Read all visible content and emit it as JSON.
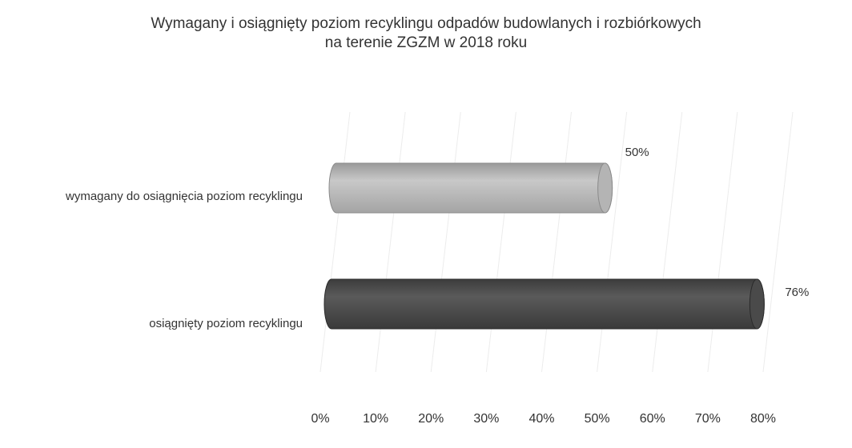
{
  "chart_data": {
    "type": "bar",
    "orientation": "horizontal",
    "title_lines": [
      "Wymagany i osiągnięty poziom recyklingu odpadów budowlanych i rozbiórkowych",
      "na terenie ZGZM w 2018 roku"
    ],
    "categories": [
      "wymagany do osiągnięcia poziom recyklingu",
      "osiągnięty poziom recyklingu"
    ],
    "values": [
      50,
      76
    ],
    "data_labels": [
      "50%",
      "76%"
    ],
    "colors": [
      "#b4b4b4",
      "#4a4a4a"
    ],
    "xlim": [
      0,
      80
    ],
    "ticks": [
      0,
      10,
      20,
      30,
      40,
      50,
      60,
      70,
      80
    ],
    "tick_labels": [
      "0%",
      "10%",
      "20%",
      "30%",
      "40%",
      "50%",
      "60%",
      "70%",
      "80%"
    ],
    "xlabel": "",
    "ylabel": "",
    "grid": true,
    "legend": "none",
    "style": "3d-cylinder"
  }
}
